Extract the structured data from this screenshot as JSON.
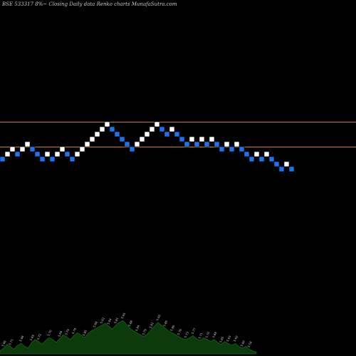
{
  "header": {
    "title": "BSE 533317 8%~  Closing Daily data  Renko  charts MunafaSutra.com"
  },
  "colors": {
    "background": "#000000",
    "up_brick": "#ffffff",
    "down_brick": "#1e74f0",
    "reference_line": "#c8821e",
    "volume_fill": "#0b3a0b",
    "volume_edge": "#1f5f1f"
  },
  "chart_data": {
    "type": "renko",
    "bricks": [
      {
        "level": 0,
        "dir": "down"
      },
      {
        "level": 1,
        "dir": "up"
      },
      {
        "level": 2,
        "dir": "up"
      },
      {
        "level": 1,
        "dir": "down"
      },
      {
        "level": 2,
        "dir": "up"
      },
      {
        "level": 3,
        "dir": "up"
      },
      {
        "level": 2,
        "dir": "down"
      },
      {
        "level": 1,
        "dir": "down"
      },
      {
        "level": 0,
        "dir": "down"
      },
      {
        "level": 1,
        "dir": "up"
      },
      {
        "level": 0,
        "dir": "down"
      },
      {
        "level": 1,
        "dir": "up"
      },
      {
        "level": 2,
        "dir": "up"
      },
      {
        "level": 1,
        "dir": "down"
      },
      {
        "level": 0,
        "dir": "down"
      },
      {
        "level": 1,
        "dir": "up"
      },
      {
        "level": 2,
        "dir": "up"
      },
      {
        "level": 3,
        "dir": "up"
      },
      {
        "level": 4,
        "dir": "up"
      },
      {
        "level": 5,
        "dir": "up"
      },
      {
        "level": 6,
        "dir": "up"
      },
      {
        "level": 7,
        "dir": "up"
      },
      {
        "level": 6,
        "dir": "down"
      },
      {
        "level": 5,
        "dir": "down"
      },
      {
        "level": 4,
        "dir": "down"
      },
      {
        "level": 3,
        "dir": "down"
      },
      {
        "level": 2,
        "dir": "down"
      },
      {
        "level": 3,
        "dir": "up"
      },
      {
        "level": 4,
        "dir": "up"
      },
      {
        "level": 5,
        "dir": "up"
      },
      {
        "level": 6,
        "dir": "up"
      },
      {
        "level": 7,
        "dir": "up"
      },
      {
        "level": 6,
        "dir": "down"
      },
      {
        "level": 5,
        "dir": "down"
      },
      {
        "level": 6,
        "dir": "up"
      },
      {
        "level": 5,
        "dir": "down"
      },
      {
        "level": 4,
        "dir": "down"
      },
      {
        "level": 3,
        "dir": "down"
      },
      {
        "level": 4,
        "dir": "up"
      },
      {
        "level": 3,
        "dir": "down"
      },
      {
        "level": 4,
        "dir": "up"
      },
      {
        "level": 3,
        "dir": "down"
      },
      {
        "level": 4,
        "dir": "up"
      },
      {
        "level": 3,
        "dir": "down"
      },
      {
        "level": 2,
        "dir": "down"
      },
      {
        "level": 3,
        "dir": "up"
      },
      {
        "level": 2,
        "dir": "down"
      },
      {
        "level": 3,
        "dir": "up"
      },
      {
        "level": 2,
        "dir": "down"
      },
      {
        "level": 1,
        "dir": "down"
      },
      {
        "level": 0,
        "dir": "down"
      },
      {
        "level": 1,
        "dir": "up"
      },
      {
        "level": 0,
        "dir": "down"
      },
      {
        "level": 1,
        "dir": "up"
      },
      {
        "level": 0,
        "dir": "down"
      },
      {
        "level": -1,
        "dir": "down"
      },
      {
        "level": -2,
        "dir": "down"
      },
      {
        "level": -1,
        "dir": "up"
      },
      {
        "level": -2,
        "dir": "down"
      }
    ],
    "level_range": [
      -10,
      14
    ],
    "volume_index_range": [
      0,
      73
    ],
    "volume": [
      6,
      12,
      20,
      15,
      10,
      18,
      22,
      16,
      12,
      24,
      30,
      26,
      20,
      28,
      34,
      30,
      24,
      32,
      40,
      36,
      30,
      38,
      44,
      40,
      34,
      42,
      48,
      52,
      56,
      60,
      64,
      58,
      52,
      60,
      66,
      70,
      62,
      54,
      48,
      44,
      40,
      36,
      42,
      50,
      58,
      66,
      60,
      54,
      48,
      44,
      40,
      36,
      32,
      30,
      34,
      38,
      32,
      28,
      34,
      30,
      26,
      30,
      24,
      20,
      26,
      22,
      18,
      22,
      16,
      12,
      16,
      10,
      6,
      4
    ],
    "volume_range": [
      0,
      100
    ],
    "volume_labels": [
      {
        "i": 1,
        "text": "5.66"
      },
      {
        "i": 3,
        "text": "5.71"
      },
      {
        "i": 6,
        "text": "5.68"
      },
      {
        "i": 9,
        "text": "5.69"
      },
      {
        "i": 11,
        "text": "5.72"
      },
      {
        "i": 14,
        "text": "5.70"
      },
      {
        "i": 17,
        "text": "5.66"
      },
      {
        "i": 19,
        "text": "5.74"
      },
      {
        "i": 21,
        "text": "5.79"
      },
      {
        "i": 24,
        "text": "5.85"
      },
      {
        "i": 27,
        "text": "5.88"
      },
      {
        "i": 29,
        "text": "5.92"
      },
      {
        "i": 31,
        "text": "5.84"
      },
      {
        "i": 33,
        "text": "5.81"
      },
      {
        "i": 35,
        "text": "5.95"
      },
      {
        "i": 37,
        "text": "5.88"
      },
      {
        "i": 39,
        "text": "5.84"
      },
      {
        "i": 41,
        "text": "5.79"
      },
      {
        "i": 43,
        "text": "5.82"
      },
      {
        "i": 45,
        "text": "5.90"
      },
      {
        "i": 47,
        "text": "5.85"
      },
      {
        "i": 49,
        "text": "5.80"
      },
      {
        "i": 51,
        "text": "5.76"
      },
      {
        "i": 53,
        "text": "5.73"
      },
      {
        "i": 55,
        "text": "5.77"
      },
      {
        "i": 57,
        "text": "5.71"
      },
      {
        "i": 59,
        "text": "5.70"
      },
      {
        "i": 61,
        "text": "5.68"
      },
      {
        "i": 63,
        "text": "5.65"
      },
      {
        "i": 65,
        "text": "5.63"
      },
      {
        "i": 67,
        "text": "5.62"
      },
      {
        "i": 69,
        "text": "5.60"
      },
      {
        "i": 71,
        "text": "5.58"
      }
    ],
    "reference_lines": [
      7,
      2
    ],
    "grid": false,
    "legend": "none"
  }
}
